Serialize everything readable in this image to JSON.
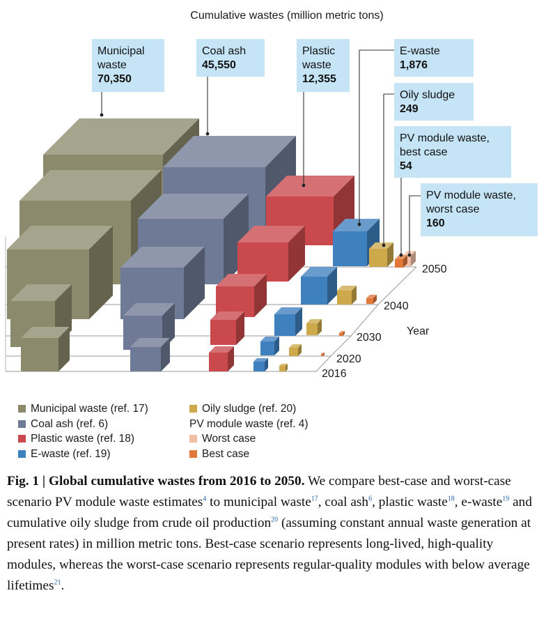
{
  "chart_data": {
    "type": "3d-bar",
    "title": "Cumulative wastes (million metric tons)",
    "depth_axis_label": "Year",
    "years": [
      "2016",
      "2020",
      "2030",
      "2040",
      "2050"
    ],
    "series": [
      {
        "name": "Municipal waste",
        "color": "#8c8a6d",
        "callout": "Municipal waste",
        "value_2050": "70,350"
      },
      {
        "name": "Coal ash",
        "color": "#6f7a96",
        "callout": "Coal ash",
        "value_2050": "45,550"
      },
      {
        "name": "Plastic waste",
        "color": "#c9494d",
        "callout": "Plastic waste",
        "value_2050": "12,355"
      },
      {
        "name": "E-waste",
        "color": "#3f80be",
        "callout": "E-waste",
        "value_2050": "1,876"
      },
      {
        "name": "Oily sludge",
        "color": "#cda94c",
        "callout": "Oily sludge",
        "value_2050": "249"
      },
      {
        "name": "PV module waste, best case",
        "color": "#e2773a",
        "callout": "PV module waste, best case",
        "value_2050": "54"
      },
      {
        "name": "PV module waste, worst case",
        "color": "#f0bea5",
        "callout": "PV module waste, worst case",
        "value_2050": "160"
      }
    ],
    "callout_lines": [
      [
        "Municipal",
        "waste",
        "70,350"
      ],
      [
        "Coal ash",
        "45,550"
      ],
      [
        "Plastic",
        "waste",
        "12,355"
      ],
      [
        "E-waste",
        "1,876"
      ],
      [
        "Oily sludge",
        "249"
      ],
      [
        "PV module waste,",
        "best case",
        "54"
      ],
      [
        "PV module waste,",
        "worst case",
        "160"
      ]
    ]
  },
  "legend": {
    "items": [
      {
        "label": "Municipal waste (ref. 17)",
        "color": "#8c8a6d"
      },
      {
        "label": "Coal ash (ref. 6)",
        "color": "#6f7a96"
      },
      {
        "label": "Plastic waste (ref. 18)",
        "color": "#c9494d"
      },
      {
        "label": "E-waste (ref. 19)",
        "color": "#3f80be"
      },
      {
        "label": "Oily sludge (ref. 20)",
        "color": "#cda94c"
      }
    ],
    "pv_heading": "PV module waste (ref. 4)",
    "pv_items": [
      {
        "label": "Worst case",
        "color": "#f0bea5"
      },
      {
        "label": "Best case",
        "color": "#e2773a"
      }
    ]
  },
  "caption": {
    "label": "Fig. 1 | Global cumulative wastes from 2016 to 2050.",
    "t1": " We compare best-case and worst-case scenario PV module waste estimates",
    "r1": "4",
    "t2": " to municipal waste",
    "r2": "17",
    "t3": ", coal ash",
    "r3": "6",
    "t4": ", plastic waste",
    "r4": "18",
    "t5": ", e-waste",
    "r5": "19",
    "t6": " and cumulative oily sludge from crude oil production",
    "r6": "20",
    "t7": " (assuming constant annual waste generation at present rates) in million metric tons. Best-case scenario represents long-lived, high-quality modules, whereas the worst-case scenario represents regular-quality modules with below average lifetimes",
    "r7": "21",
    "t8": "."
  }
}
